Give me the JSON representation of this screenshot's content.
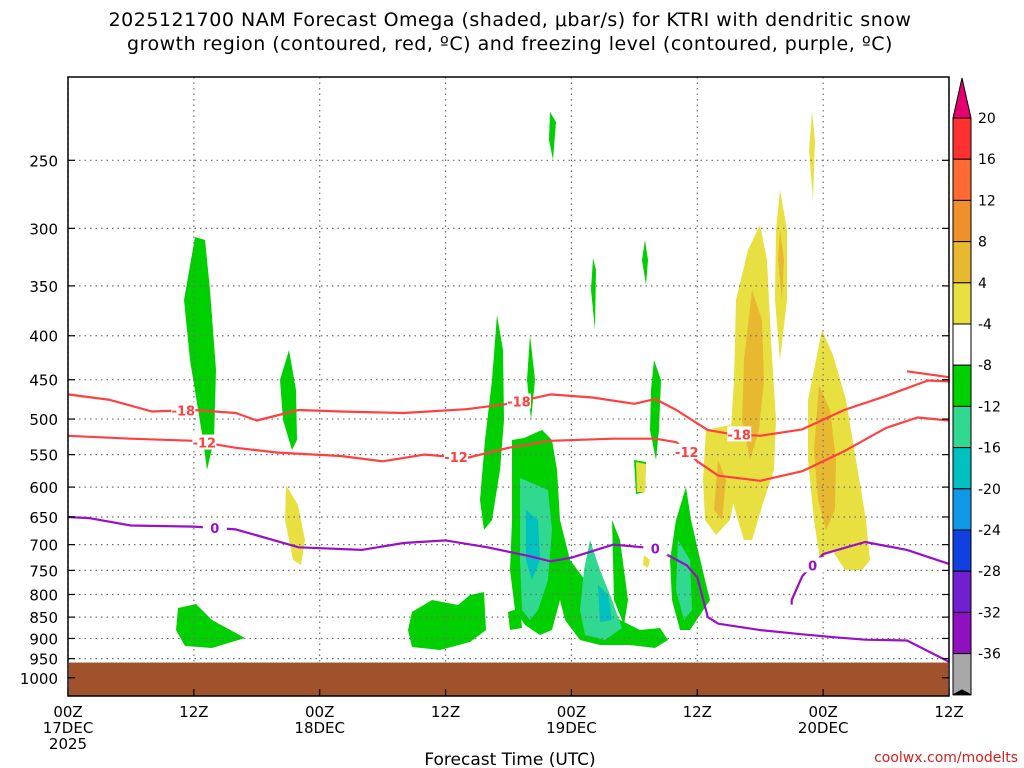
{
  "title_lines": [
    "2025121700 NAM Forecast Omega (shaded, μbar/s) for KTRI with dendritic snow",
    "growth region (contoured, red, ºC) and freezing level (contoured, purple, ºC)"
  ],
  "credit": "coolwx.com/modelts",
  "chart_data": {
    "type": "heatmap",
    "title": "2025121700 NAM Forecast Omega (shaded, μbar/s) for KTRI with dendritic snow growth region (contoured, red, ºC) and freezing level (contoured, purple, ºC)",
    "xlabel": "Forecast Time (UTC)",
    "ylabel": "",
    "xlim_hours": [
      0,
      84
    ],
    "ylim_hpa": [
      1050,
      200
    ],
    "y_scale": "log",
    "y_ticks": [
      250,
      300,
      350,
      400,
      450,
      500,
      550,
      600,
      650,
      700,
      750,
      800,
      850,
      900,
      950,
      1000
    ],
    "x_ticks": [
      {
        "hour": 0,
        "lines": [
          "00Z",
          "17DEC",
          "2025"
        ]
      },
      {
        "hour": 12,
        "lines": [
          "12Z"
        ]
      },
      {
        "hour": 24,
        "lines": [
          "00Z",
          "18DEC"
        ]
      },
      {
        "hour": 36,
        "lines": [
          "12Z"
        ]
      },
      {
        "hour": 48,
        "lines": [
          "00Z",
          "19DEC"
        ]
      },
      {
        "hour": 60,
        "lines": [
          "12Z"
        ]
      },
      {
        "hour": 72,
        "lines": [
          "00Z",
          "20DEC"
        ]
      },
      {
        "hour": 84,
        "lines": [
          "12Z"
        ]
      }
    ],
    "ground_top_hpa": 960,
    "colorbar": {
      "labels": [
        "20",
        "16",
        "12",
        "8",
        "4",
        "-4",
        "-8",
        "-12",
        "-16",
        "-20",
        "-24",
        "-28",
        "-32",
        "-36"
      ],
      "colors": [
        "#e4006e",
        "#ff3030",
        "#ff6a30",
        "#f0902a",
        "#e8b830",
        "#e8e040",
        "#ffffff",
        "#00d000",
        "#30d890",
        "#00c0c0",
        "#1098e8",
        "#1040e0",
        "#7020d0",
        "#9010c0",
        "#a8a8a8",
        "#000000"
      ]
    },
    "series": [
      {
        "name": "-18 ºC isotherm",
        "label": "-18",
        "color": "#ff4040",
        "label_hours": [
          11,
          43,
          64
        ],
        "points": [
          [
            0,
            468
          ],
          [
            4,
            475
          ],
          [
            8,
            490
          ],
          [
            12,
            488
          ],
          [
            16,
            492
          ],
          [
            18,
            502
          ],
          [
            22,
            488
          ],
          [
            26,
            490
          ],
          [
            32,
            492
          ],
          [
            38,
            487
          ],
          [
            42,
            480
          ],
          [
            46,
            468
          ],
          [
            50,
            472
          ],
          [
            54,
            480
          ],
          [
            56,
            474
          ],
          [
            58,
            488
          ],
          [
            61,
            515
          ],
          [
            63,
            520
          ],
          [
            66,
            523
          ],
          [
            70,
            514
          ],
          [
            74,
            488
          ],
          [
            78,
            470
          ],
          [
            82,
            451
          ],
          [
            84,
            452
          ]
        ]
      },
      {
        "name": "-18 ºC isotherm (east)",
        "label": "",
        "color": "#ff4040",
        "label_hours": [],
        "points": [
          [
            80,
            440
          ],
          [
            84,
            447
          ]
        ]
      },
      {
        "name": "-12 ºC isotherm",
        "label": "-12",
        "color": "#ff4040",
        "label_hours": [
          13,
          37,
          59
        ],
        "points": [
          [
            0,
            523
          ],
          [
            6,
            527
          ],
          [
            12,
            530
          ],
          [
            16,
            540
          ],
          [
            20,
            547
          ],
          [
            26,
            552
          ],
          [
            30,
            560
          ],
          [
            34,
            550
          ],
          [
            38,
            555
          ],
          [
            42,
            540
          ],
          [
            46,
            530
          ],
          [
            52,
            527
          ],
          [
            56,
            527
          ],
          [
            58,
            532
          ],
          [
            60,
            560
          ],
          [
            62,
            582
          ],
          [
            66,
            590
          ],
          [
            70,
            575
          ],
          [
            74,
            545
          ],
          [
            78,
            512
          ],
          [
            81,
            498
          ],
          [
            84,
            502
          ]
        ]
      },
      {
        "name": "0 ºC freezing level",
        "label": "0",
        "color": "#9a10c8",
        "label_hours": [
          14,
          56
        ],
        "points": [
          [
            0,
            650
          ],
          [
            2,
            652
          ],
          [
            6,
            665
          ],
          [
            12,
            667
          ],
          [
            16,
            672
          ],
          [
            22,
            705
          ],
          [
            28,
            710
          ],
          [
            32,
            697
          ],
          [
            36,
            692
          ],
          [
            40,
            705
          ],
          [
            44,
            722
          ],
          [
            46,
            732
          ],
          [
            48,
            725
          ],
          [
            52,
            700
          ],
          [
            56,
            707
          ],
          [
            59,
            740
          ],
          [
            60,
            764
          ],
          [
            61,
            850
          ],
          [
            62,
            865
          ],
          [
            66,
            880
          ],
          [
            70,
            890
          ],
          [
            73,
            897
          ],
          [
            76,
            903
          ],
          [
            80,
            905
          ],
          [
            84,
            958
          ]
        ]
      },
      {
        "name": "0 ºC freezing level (east)",
        "label": "0",
        "color": "#9a10c8",
        "label_hours": [
          71
        ],
        "points": [
          [
            69,
            822
          ],
          [
            69,
            812
          ],
          [
            70,
            762
          ],
          [
            72,
            718
          ],
          [
            76,
            695
          ],
          [
            80,
            710
          ],
          [
            84,
            737
          ]
        ]
      }
    ]
  }
}
